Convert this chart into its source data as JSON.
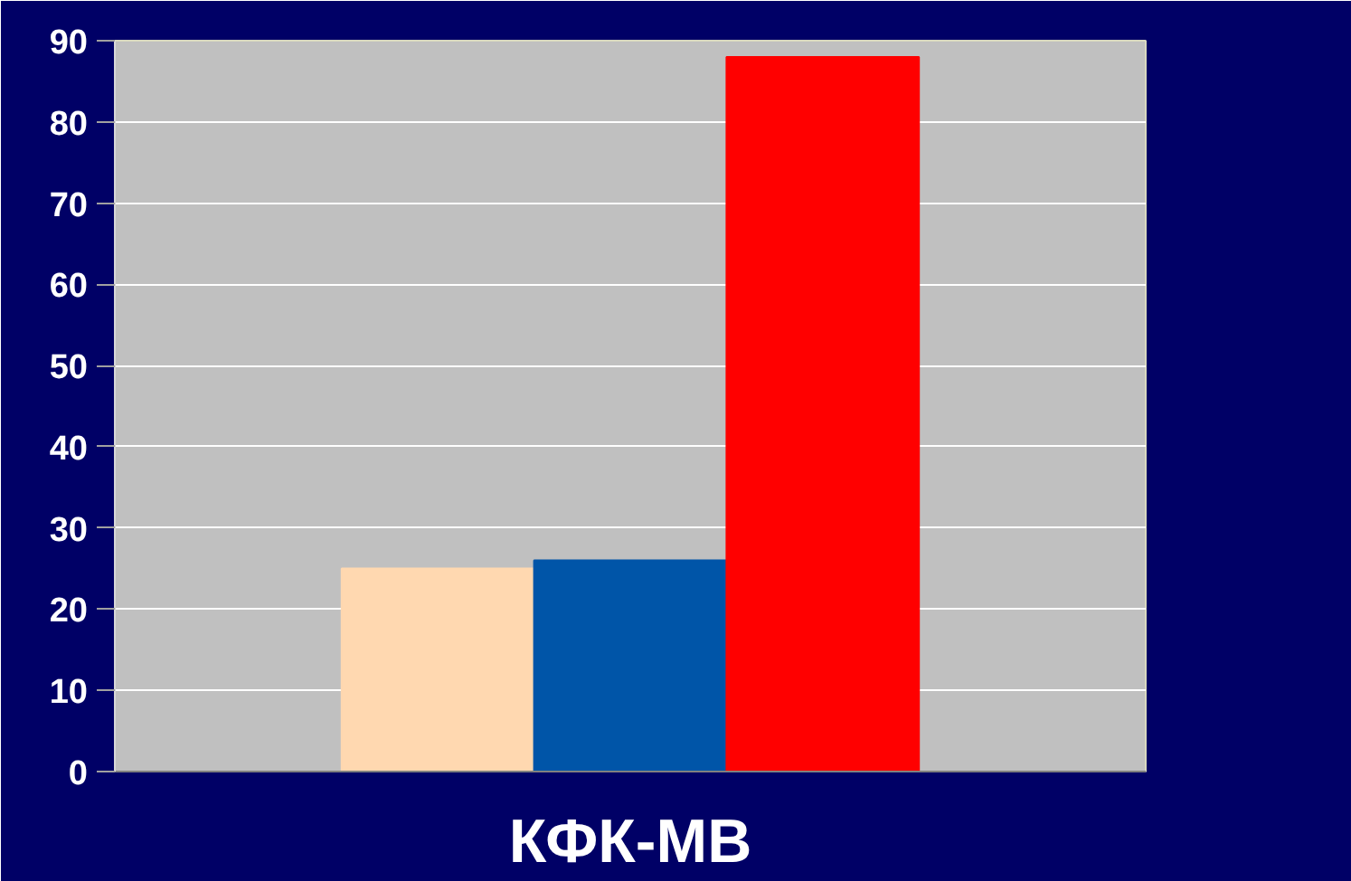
{
  "chart_data": {
    "type": "bar",
    "categories": [
      "КФК-МВ"
    ],
    "series": [
      {
        "color": "#ffd8b0",
        "values": [
          25
        ]
      },
      {
        "color": "#0055a8",
        "values": [
          26
        ]
      },
      {
        "color": "#ff0000",
        "values": [
          88
        ]
      }
    ],
    "ylim": [
      0,
      90
    ],
    "yticks": [
      0,
      10,
      20,
      30,
      40,
      50,
      60,
      70,
      80,
      90
    ],
    "grid": "y"
  }
}
